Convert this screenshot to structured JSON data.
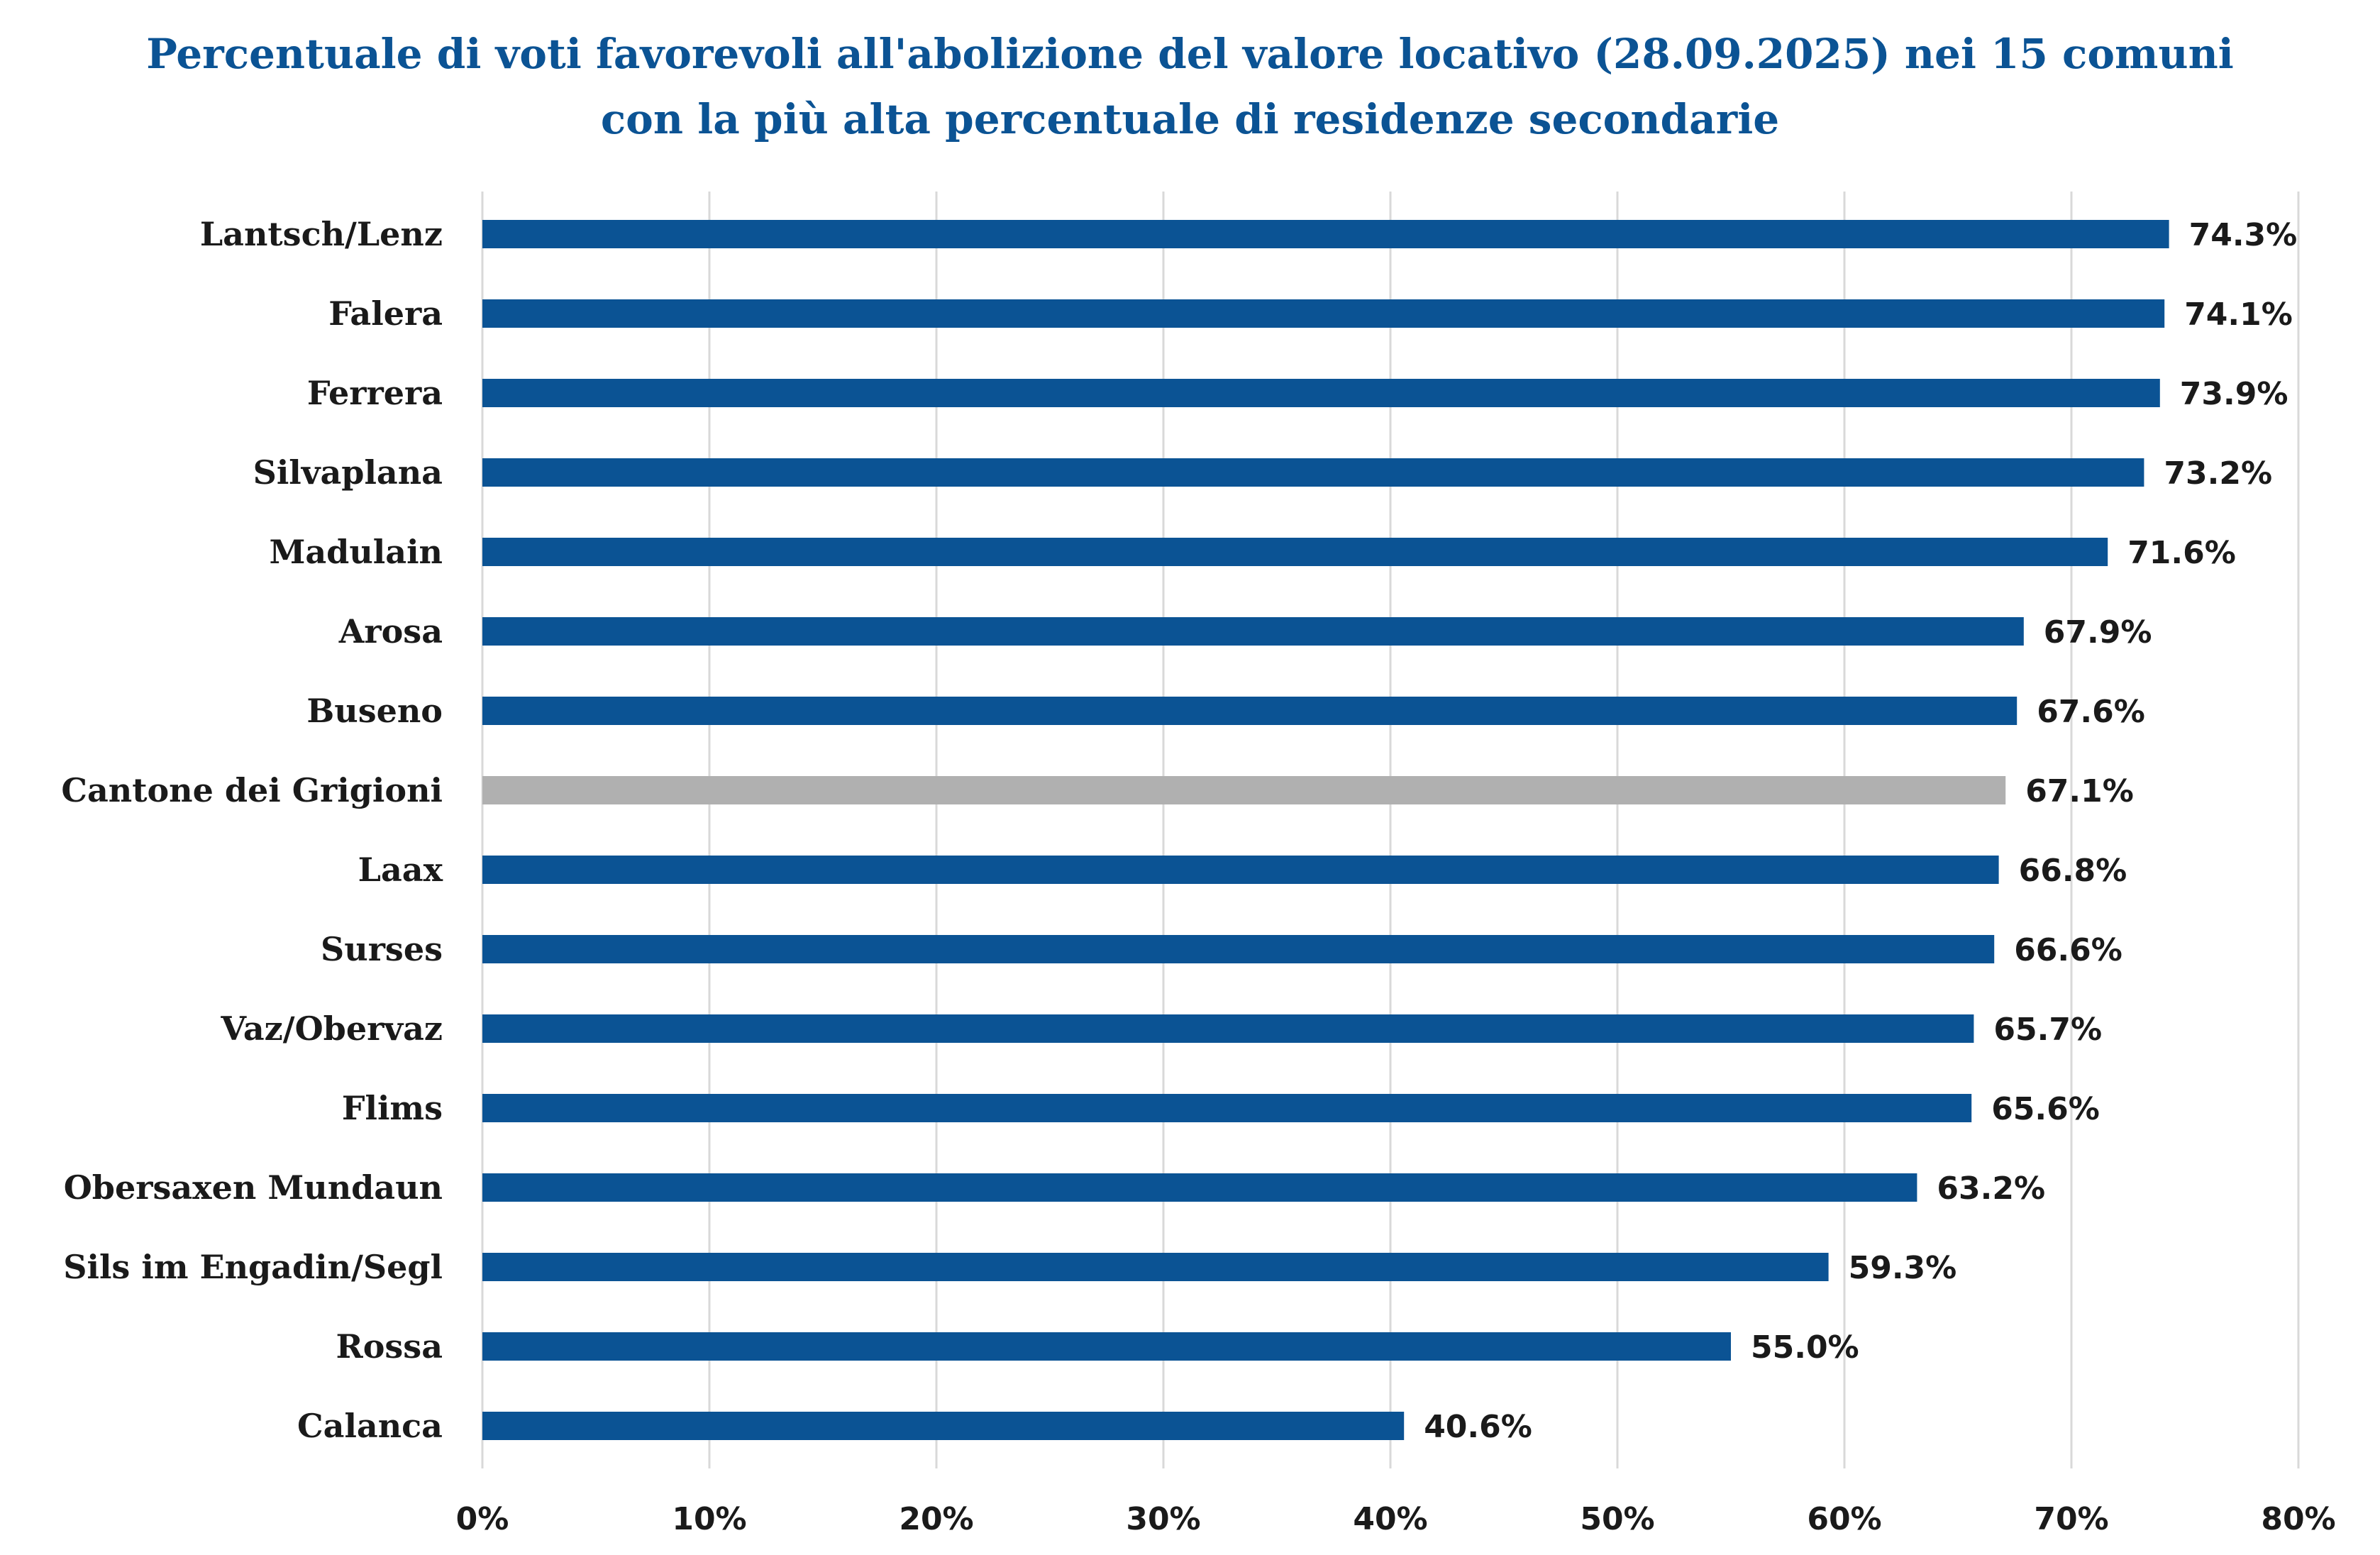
{
  "chart_data": {
    "type": "bar",
    "orientation": "horizontal",
    "title_lines": [
      "Percentuale di voti favorevoli all'abolizione del valore locativo (28.09.2025) nei 15 comuni",
      "con la più alta percentuale di residenze secondarie"
    ],
    "categories": [
      "Lantsch/Lenz",
      "Falera",
      "Ferrera",
      "Silvaplana",
      "Madulain",
      "Arosa",
      "Buseno",
      "Cantone dei Grigioni",
      "Laax",
      "Surses",
      "Vaz/Obervaz",
      "Flims",
      "Obersaxen Mundaun",
      "Sils im Engadin/Segl",
      "Rossa",
      "Calanca"
    ],
    "values": [
      74.3,
      74.1,
      73.9,
      73.2,
      71.6,
      67.9,
      67.6,
      67.1,
      66.8,
      66.6,
      65.7,
      65.6,
      63.2,
      59.3,
      55.0,
      40.6
    ],
    "value_labels": [
      "74.3%",
      "74.1%",
      "73.9%",
      "73.2%",
      "71.6%",
      "67.9%",
      "67.6%",
      "67.1%",
      "66.8%",
      "66.6%",
      "65.7%",
      "65.6%",
      "63.2%",
      "59.3%",
      "55.0%",
      "40.6%"
    ],
    "x_ticks": [
      "0%",
      "10%",
      "20%",
      "30%",
      "40%",
      "50%",
      "60%",
      "70%",
      "80%"
    ],
    "xlim": [
      0,
      80
    ],
    "grid": true,
    "legend": "none",
    "colors": {
      "bar": "#0b5394",
      "highlight_bar": "#b0b0b0",
      "highlight_category": "Cantone dei Grigioni",
      "grid": "#d9d9d9",
      "title": "#0b5394",
      "text": "#1a1a1a"
    }
  }
}
